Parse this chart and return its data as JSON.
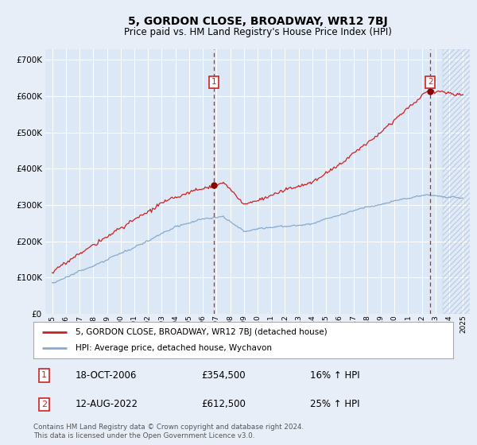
{
  "title": "5, GORDON CLOSE, BROADWAY, WR12 7BJ",
  "subtitle": "Price paid vs. HM Land Registry's House Price Index (HPI)",
  "background_color": "#e8eef8",
  "plot_bg_color": "#dce8f5",
  "ylim": [
    0,
    730000
  ],
  "xlim_start": 1994.5,
  "xlim_end": 2025.5,
  "sale1_date": 2006.79,
  "sale1_price": 354500,
  "sale1_label": "1",
  "sale1_display": "18-OCT-2006",
  "sale1_amount": "£354,500",
  "sale1_hpi": "16% ↑ HPI",
  "sale2_date": 2022.62,
  "sale2_price": 612500,
  "sale2_label": "2",
  "sale2_display": "12-AUG-2022",
  "sale2_amount": "£612,500",
  "sale2_hpi": "25% ↑ HPI",
  "legend_line1": "5, GORDON CLOSE, BROADWAY, WR12 7BJ (detached house)",
  "legend_line2": "HPI: Average price, detached house, Wychavon",
  "footnote": "Contains HM Land Registry data © Crown copyright and database right 2024.\nThis data is licensed under the Open Government Licence v3.0.",
  "line_color_red": "#cc2222",
  "line_color_blue": "#88aacc",
  "marker_color_red": "#880000",
  "dashed_line_color": "#cc2222",
  "hatch_future_start": 2023.5
}
